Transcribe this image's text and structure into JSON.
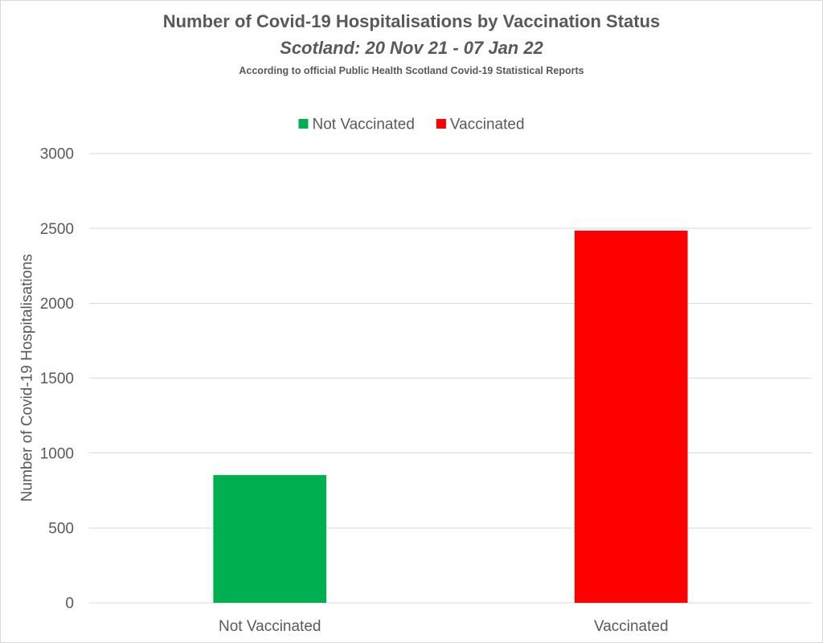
{
  "chart_data": {
    "type": "bar",
    "title": "Number of Covid-19 Hospitalisations by Vaccination Status",
    "subtitle": "Scotland: 20 Nov 21 - 07 Jan 22",
    "caption": "According to official Public Health Scotland Covid-19 Statistical Reports",
    "categories": [
      "Not Vaccinated",
      "Vaccinated"
    ],
    "values": [
      853,
      2485
    ],
    "colors": [
      "#00b050",
      "#ff0000"
    ],
    "ylabel": "Number of Covid-19 Hospitalisations",
    "ylim": [
      0,
      3000
    ],
    "yticks": [
      0,
      500,
      1000,
      1500,
      2000,
      2500,
      3000
    ],
    "grid": true,
    "legend": {
      "position": "top",
      "entries": [
        {
          "label": "Not Vaccinated",
          "color": "#00b050"
        },
        {
          "label": "Vaccinated",
          "color": "#ff0000"
        }
      ]
    }
  }
}
